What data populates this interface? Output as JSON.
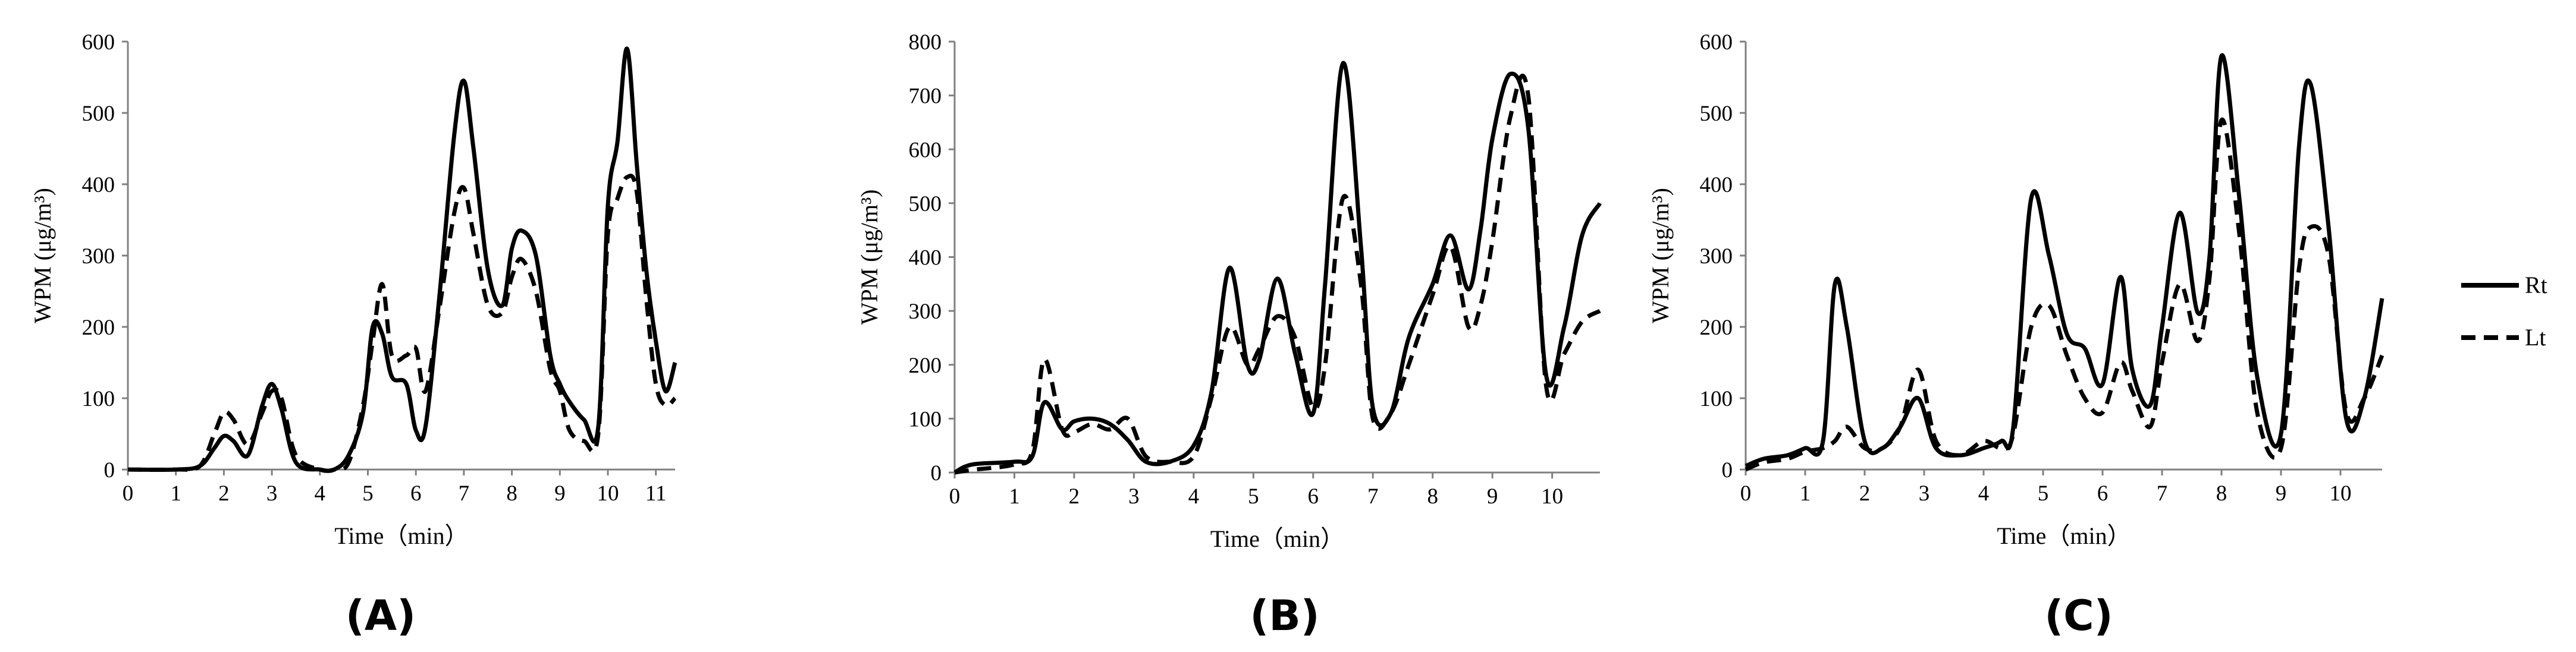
{
  "chart_data": [
    {
      "type": "line",
      "panel_label": "(A)",
      "xlabel": "Time（min）",
      "ylabel": "WPM (μg/m³)",
      "ylim": [
        0,
        600
      ],
      "yticks": [
        0,
        100,
        200,
        300,
        400,
        500,
        600
      ],
      "xticks": [
        0,
        1,
        2,
        3,
        4,
        5,
        6,
        7,
        8,
        9,
        10,
        11
      ],
      "xlim": [
        0,
        11.4
      ],
      "series": [
        {
          "name": "Rt",
          "style": "solid",
          "x": [
            0,
            1.0,
            1.5,
            1.8,
            2.0,
            2.2,
            2.5,
            2.8,
            3.0,
            3.2,
            3.5,
            4.0,
            4.3,
            4.6,
            4.9,
            5.1,
            5.3,
            5.5,
            5.8,
            6.0,
            6.2,
            6.5,
            6.8,
            7.0,
            7.2,
            7.5,
            7.8,
            8.0,
            8.2,
            8.5,
            8.8,
            9.0,
            9.2,
            9.5,
            9.8,
            10.0,
            10.2,
            10.4,
            10.6,
            10.8,
            11.0,
            11.2,
            11.4
          ],
          "y": [
            0,
            0,
            5,
            30,
            47,
            40,
            20,
            90,
            120,
            85,
            10,
            0,
            0,
            20,
            80,
            200,
            190,
            130,
            120,
            55,
            60,
            250,
            470,
            545,
            450,
            280,
            230,
            310,
            335,
            300,
            160,
            120,
            95,
            70,
            60,
            370,
            460,
            590,
            430,
            280,
            180,
            110,
            150
          ]
        },
        {
          "name": "Lt",
          "style": "dashed",
          "x": [
            0,
            1.0,
            1.5,
            1.8,
            2.0,
            2.2,
            2.5,
            2.8,
            3.0,
            3.2,
            3.5,
            4.0,
            4.3,
            4.6,
            4.9,
            5.1,
            5.3,
            5.5,
            5.8,
            6.0,
            6.2,
            6.5,
            6.8,
            7.0,
            7.2,
            7.5,
            7.8,
            8.0,
            8.2,
            8.5,
            8.8,
            9.0,
            9.2,
            9.5,
            9.8,
            10.0,
            10.2,
            10.4,
            10.6,
            10.8,
            11.0,
            11.2,
            11.4
          ],
          "y": [
            0,
            0,
            5,
            50,
            80,
            70,
            35,
            80,
            110,
            100,
            20,
            0,
            0,
            10,
            90,
            180,
            260,
            160,
            160,
            170,
            110,
            230,
            360,
            395,
            330,
            230,
            220,
            270,
            295,
            250,
            140,
            110,
            55,
            40,
            50,
            330,
            380,
            410,
            390,
            240,
            120,
            90,
            100
          ]
        }
      ]
    },
    {
      "type": "line",
      "panel_label": "(B)",
      "xlabel": "Time（min）",
      "ylabel": "WPM (μg/m³)",
      "ylim": [
        0,
        800
      ],
      "yticks": [
        0,
        100,
        200,
        300,
        400,
        500,
        600,
        700,
        800
      ],
      "xticks": [
        0,
        1,
        2,
        3,
        4,
        5,
        6,
        7,
        8,
        9,
        10
      ],
      "xlim": [
        0,
        10.8
      ],
      "series": [
        {
          "name": "Rt",
          "style": "solid",
          "x": [
            0,
            0.3,
            1.0,
            1.3,
            1.5,
            1.8,
            2.0,
            2.3,
            2.6,
            2.9,
            3.2,
            3.6,
            4.0,
            4.3,
            4.6,
            4.9,
            5.1,
            5.4,
            5.7,
            6.0,
            6.2,
            6.5,
            6.8,
            7.0,
            7.3,
            7.6,
            8.0,
            8.3,
            8.6,
            8.8,
            9.0,
            9.3,
            9.6,
            9.9,
            10.2,
            10.5,
            10.8
          ],
          "y": [
            0,
            15,
            20,
            30,
            130,
            80,
            95,
            100,
            90,
            60,
            20,
            20,
            50,
            150,
            380,
            200,
            210,
            360,
            220,
            110,
            350,
            760,
            420,
            120,
            110,
            250,
            350,
            440,
            340,
            450,
            620,
            740,
            640,
            180,
            270,
            440,
            500
          ]
        },
        {
          "name": "Lt",
          "style": "dashed",
          "x": [
            0,
            0.3,
            1.0,
            1.3,
            1.5,
            1.8,
            2.0,
            2.3,
            2.6,
            2.9,
            3.2,
            3.6,
            4.0,
            4.3,
            4.6,
            4.9,
            5.1,
            5.4,
            5.7,
            6.0,
            6.2,
            6.5,
            6.8,
            7.0,
            7.3,
            7.6,
            8.0,
            8.3,
            8.6,
            8.8,
            9.0,
            9.3,
            9.6,
            9.9,
            10.2,
            10.5,
            10.8
          ],
          "y": [
            0,
            5,
            15,
            40,
            210,
            80,
            75,
            90,
            80,
            100,
            30,
            20,
            30,
            140,
            270,
            200,
            230,
            290,
            250,
            120,
            200,
            510,
            350,
            100,
            110,
            200,
            330,
            420,
            270,
            310,
            430,
            660,
            700,
            160,
            220,
            280,
            300
          ]
        }
      ]
    },
    {
      "type": "line",
      "panel_label": "(C)",
      "xlabel": "Time（min）",
      "ylabel": "WPM (μg/m³)",
      "ylim": [
        0,
        600
      ],
      "yticks": [
        0,
        100,
        200,
        300,
        400,
        500,
        600
      ],
      "xticks": [
        0,
        1,
        2,
        3,
        4,
        5,
        6,
        7,
        8,
        9,
        10
      ],
      "xlim": [
        0,
        10.7
      ],
      "series": [
        {
          "name": "Rt",
          "style": "solid",
          "x": [
            0,
            0.3,
            0.7,
            1.0,
            1.3,
            1.5,
            1.7,
            2.0,
            2.3,
            2.6,
            2.9,
            3.2,
            3.6,
            4.0,
            4.3,
            4.5,
            4.8,
            5.1,
            5.4,
            5.7,
            6.0,
            6.3,
            6.5,
            6.8,
            7.0,
            7.3,
            7.6,
            7.8,
            8.0,
            8.3,
            8.6,
            9.0,
            9.3,
            9.5,
            9.8,
            10.1,
            10.4,
            10.7
          ],
          "y": [
            5,
            15,
            20,
            30,
            40,
            260,
            200,
            40,
            30,
            60,
            100,
            30,
            20,
            30,
            40,
            60,
            380,
            300,
            190,
            170,
            120,
            270,
            140,
            90,
            200,
            360,
            220,
            300,
            580,
            380,
            130,
            50,
            450,
            540,
            340,
            70,
            100,
            240
          ]
        },
        {
          "name": "Lt",
          "style": "dashed",
          "x": [
            0,
            0.3,
            0.7,
            1.0,
            1.3,
            1.5,
            1.7,
            2.0,
            2.3,
            2.6,
            2.9,
            3.2,
            3.6,
            4.0,
            4.3,
            4.5,
            4.8,
            5.1,
            5.4,
            5.7,
            6.0,
            6.3,
            6.5,
            6.8,
            7.0,
            7.3,
            7.6,
            7.8,
            8.0,
            8.3,
            8.6,
            9.0,
            9.3,
            9.5,
            9.8,
            10.1,
            10.4,
            10.7
          ],
          "y": [
            0,
            10,
            15,
            25,
            30,
            40,
            60,
            30,
            30,
            60,
            140,
            40,
            20,
            40,
            30,
            50,
            200,
            230,
            160,
            100,
            80,
            150,
            110,
            60,
            150,
            260,
            180,
            270,
            490,
            330,
            80,
            30,
            280,
            340,
            300,
            80,
            100,
            160
          ]
        }
      ]
    }
  ],
  "legend": {
    "position": "right",
    "entries": [
      {
        "name": "Rt",
        "style": "solid"
      },
      {
        "name": "Lt",
        "style": "dashed"
      }
    ]
  },
  "colors": {
    "line": "#000000",
    "axis": "#808080",
    "background": "#ffffff"
  }
}
